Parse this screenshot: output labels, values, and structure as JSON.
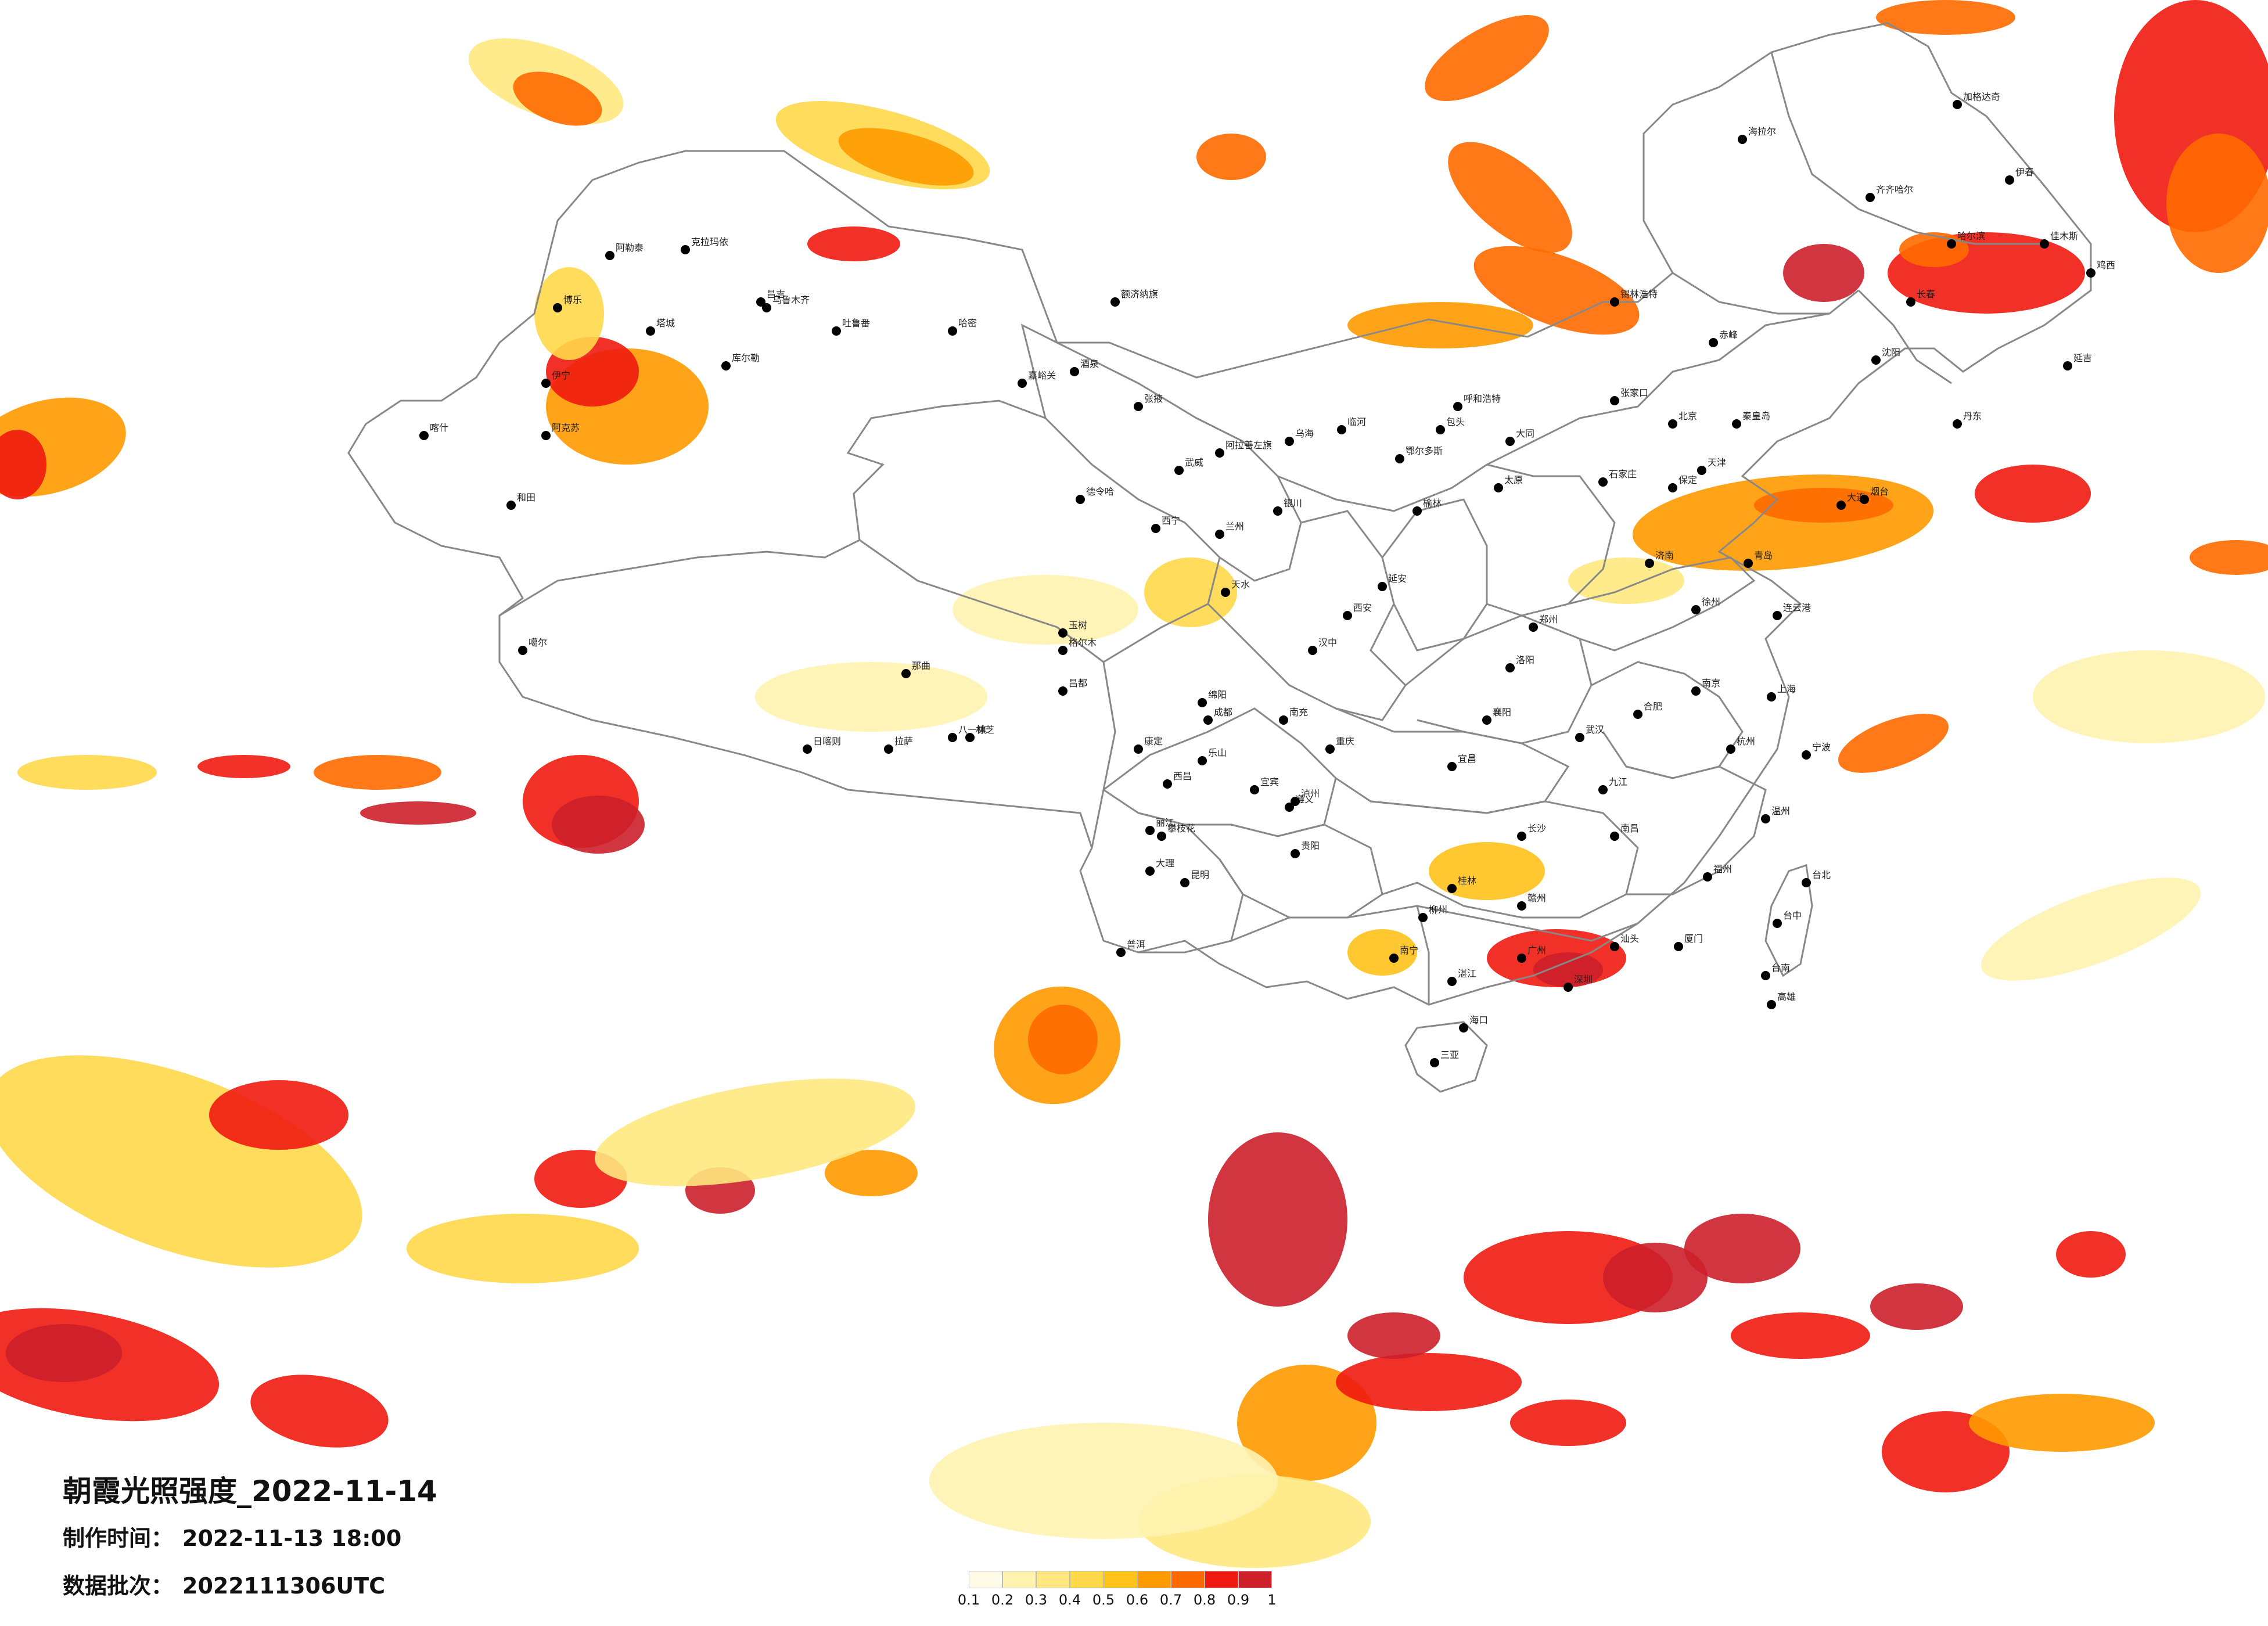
{
  "map": {
    "title": "朝霞光照强度_2022-11-14",
    "production_time_label": "制作时间：",
    "production_time_value": "2022-11-13 18:00",
    "data_batch_label": "数据批次：",
    "data_batch_value": "2022111306UTC"
  },
  "legend": {
    "ticks": [
      "0.1",
      "0.2",
      "0.3",
      "0.4",
      "0.5",
      "0.6",
      "0.7",
      "0.8",
      "0.9",
      "1"
    ],
    "colors": [
      "#fffbe6",
      "#fff3b0",
      "#ffe880",
      "#ffd84a",
      "#ffc21a",
      "#ff9a00",
      "#ff6a00",
      "#f01a10",
      "#cc1f2a"
    ]
  },
  "cities": [
    {
      "name": "克拉玛依"
    },
    {
      "name": "昌吉"
    },
    {
      "name": "乌鲁木齐"
    },
    {
      "name": "吐鲁番"
    },
    {
      "name": "哈密"
    },
    {
      "name": "库尔勒"
    },
    {
      "name": "阿克苏"
    },
    {
      "name": "喀什"
    },
    {
      "name": "和田"
    },
    {
      "name": "噶尔"
    },
    {
      "name": "日喀则"
    },
    {
      "name": "拉萨"
    },
    {
      "name": "林芝"
    },
    {
      "name": "那曲"
    },
    {
      "name": "昌都"
    },
    {
      "name": "玉树"
    },
    {
      "name": "格尔木"
    },
    {
      "name": "德令哈"
    },
    {
      "name": "西宁"
    },
    {
      "name": "兰州"
    },
    {
      "name": "银川"
    },
    {
      "name": "呼和浩特"
    },
    {
      "name": "包头"
    },
    {
      "name": "海拉尔"
    },
    {
      "name": "齐齐哈尔"
    },
    {
      "name": "哈尔滨"
    },
    {
      "name": "长春"
    },
    {
      "name": "沈阳"
    },
    {
      "name": "北京"
    },
    {
      "name": "天津"
    },
    {
      "name": "石家庄"
    },
    {
      "name": "太原"
    },
    {
      "name": "济南"
    },
    {
      "name": "郑州"
    },
    {
      "name": "西安"
    },
    {
      "name": "成都"
    },
    {
      "name": "重庆"
    },
    {
      "name": "贵阳"
    },
    {
      "name": "昆明"
    },
    {
      "name": "南宁"
    },
    {
      "name": "广州"
    },
    {
      "name": "海口"
    },
    {
      "name": "长沙"
    },
    {
      "name": "武汉"
    },
    {
      "name": "南昌"
    },
    {
      "name": "合肥"
    },
    {
      "name": "南京"
    },
    {
      "name": "上海"
    },
    {
      "name": "杭州"
    },
    {
      "name": "福州"
    },
    {
      "name": "台北"
    },
    {
      "name": "台中"
    },
    {
      "name": "台南"
    },
    {
      "name": "高雄"
    },
    {
      "name": "大连"
    },
    {
      "name": "青岛"
    },
    {
      "name": "锡林浩特"
    },
    {
      "name": "伊春"
    },
    {
      "name": "佳木斯"
    },
    {
      "name": "鸡西"
    },
    {
      "name": "加格达奇"
    },
    {
      "name": "延吉"
    },
    {
      "name": "丹东"
    },
    {
      "name": "赤峰"
    },
    {
      "name": "大同"
    },
    {
      "name": "张家口"
    },
    {
      "name": "保定"
    },
    {
      "name": "秦皇岛"
    },
    {
      "name": "烟台"
    },
    {
      "name": "连云港"
    },
    {
      "name": "徐州"
    },
    {
      "name": "温州"
    },
    {
      "name": "宁波"
    },
    {
      "name": "厦门"
    },
    {
      "name": "汕头"
    },
    {
      "name": "深圳"
    },
    {
      "name": "桂林"
    },
    {
      "name": "柳州"
    },
    {
      "name": "遵义"
    },
    {
      "name": "大理"
    },
    {
      "name": "丽江"
    },
    {
      "name": "普洱"
    },
    {
      "name": "西昌"
    },
    {
      "name": "攀枝花"
    },
    {
      "name": "三亚"
    },
    {
      "name": "湛江"
    },
    {
      "name": "赣州"
    },
    {
      "name": "九江"
    },
    {
      "name": "宜昌"
    },
    {
      "name": "襄阳"
    },
    {
      "name": "洛阳"
    },
    {
      "name": "延安"
    },
    {
      "name": "榆林"
    },
    {
      "name": "鄂尔多斯"
    },
    {
      "name": "阿拉善左旗"
    },
    {
      "name": "酒泉"
    },
    {
      "name": "嘉峪关"
    },
    {
      "name": "张掖"
    },
    {
      "name": "武威"
    },
    {
      "name": "天水"
    },
    {
      "name": "汉中"
    },
    {
      "name": "南充"
    },
    {
      "name": "绵阳"
    },
    {
      "name": "乐山"
    },
    {
      "name": "宜宾"
    },
    {
      "name": "泸州"
    },
    {
      "name": "康定"
    },
    {
      "name": "乌海"
    },
    {
      "name": "临河"
    },
    {
      "name": "额济纳旗"
    },
    {
      "name": "阿勒泰"
    },
    {
      "name": "博乐"
    },
    {
      "name": "伊宁"
    },
    {
      "name": "塔城"
    },
    {
      "name": "八一镇"
    }
  ]
}
